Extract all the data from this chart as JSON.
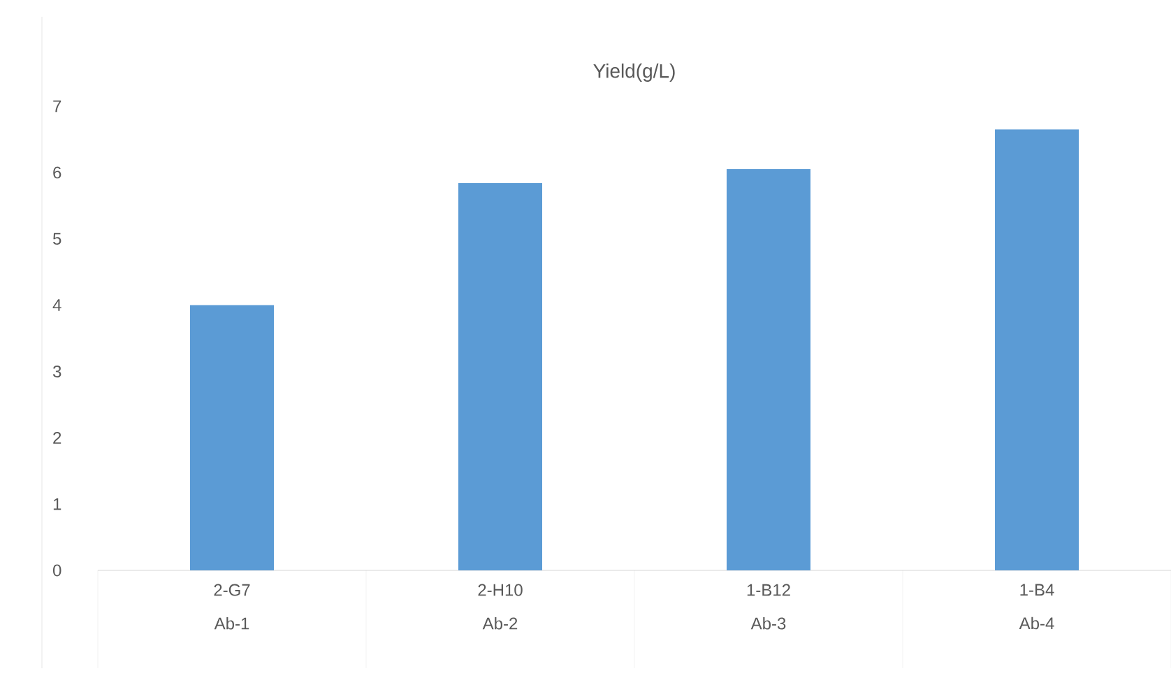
{
  "chart_data": {
    "type": "bar",
    "title": "Yield(g/L)",
    "categories": [
      "2-G7 Ab-1",
      "2-H10 Ab-2",
      "1-B12 Ab-3",
      "1-B4 Ab-4"
    ],
    "values": [
      4.0,
      5.84,
      6.05,
      6.65
    ],
    "color": "#5b9bd5",
    "ylim": [
      0,
      7
    ],
    "yticks": [
      0,
      1,
      2,
      3,
      4,
      5,
      6,
      7
    ]
  }
}
